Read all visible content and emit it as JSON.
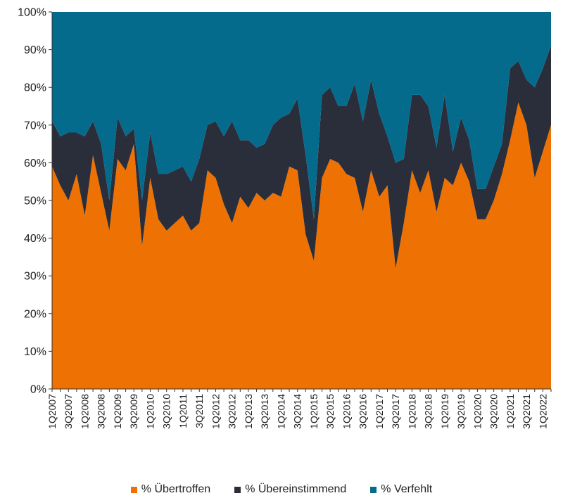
{
  "chart_data": {
    "type": "area",
    "stacked": true,
    "percent": true,
    "title": "",
    "xlabel": "",
    "ylabel": "",
    "ylim": [
      0,
      100
    ],
    "y_ticks": [
      "0%",
      "10%",
      "20%",
      "30%",
      "40%",
      "50%",
      "60%",
      "70%",
      "80%",
      "90%",
      "100%"
    ],
    "x_tick_labels": [
      "1Q2007",
      "3Q2007",
      "1Q2008",
      "3Q2008",
      "1Q2009",
      "3Q2009",
      "1Q2010",
      "3Q2010",
      "1Q2011",
      "3Q2011",
      "1Q2012",
      "3Q2012",
      "1Q2013",
      "3Q2013",
      "1Q2014",
      "3Q2014",
      "1Q2015",
      "3Q2015",
      "1Q2016",
      "3Q2016",
      "1Q2017",
      "3Q2017",
      "1Q2018",
      "3Q2018",
      "1Q2019",
      "3Q2019",
      "1Q2020",
      "3Q2020",
      "1Q2021",
      "3Q2021",
      "1Q2022"
    ],
    "x": [
      "1Q2007",
      "2Q2007",
      "3Q2007",
      "4Q2007",
      "1Q2008",
      "2Q2008",
      "3Q2008",
      "4Q2008",
      "1Q2009",
      "2Q2009",
      "3Q2009",
      "4Q2009",
      "1Q2010",
      "2Q2010",
      "3Q2010",
      "4Q2010",
      "1Q2011",
      "2Q2011",
      "3Q2011",
      "4Q2011",
      "1Q2012",
      "2Q2012",
      "3Q2012",
      "4Q2012",
      "1Q2013",
      "2Q2013",
      "3Q2013",
      "4Q2013",
      "1Q2014",
      "2Q2014",
      "3Q2014",
      "4Q2014",
      "1Q2015",
      "2Q2015",
      "3Q2015",
      "4Q2015",
      "1Q2016",
      "2Q2016",
      "3Q2016",
      "4Q2016",
      "1Q2017",
      "2Q2017",
      "3Q2017",
      "4Q2017",
      "1Q2018",
      "2Q2018",
      "3Q2018",
      "4Q2018",
      "1Q2019",
      "2Q2019",
      "3Q2019",
      "4Q2019",
      "1Q2020",
      "2Q2020",
      "3Q2020",
      "4Q2020",
      "1Q2021",
      "2Q2021",
      "3Q2021",
      "4Q2021",
      "1Q2022",
      "2Q2022"
    ],
    "series": [
      {
        "name": "% Übertroffen",
        "color": "#ee7203",
        "values": [
          59,
          54,
          50,
          57,
          46,
          62,
          52,
          42,
          61,
          58,
          65,
          38,
          56,
          45,
          42,
          44,
          46,
          42,
          44,
          58,
          56,
          49,
          44,
          51,
          48,
          52,
          50,
          52,
          51,
          59,
          58,
          41,
          34,
          56,
          61,
          60,
          57,
          56,
          47,
          58,
          51,
          54,
          32,
          44,
          58,
          52,
          58,
          47,
          56,
          54,
          60,
          55,
          45,
          45,
          50,
          57,
          66,
          76,
          70,
          56,
          63,
          70
        ]
      },
      {
        "name": "% Übereinstimmend",
        "color": "#2a2d3a",
        "values": [
          12,
          13,
          18,
          11,
          21,
          9,
          13,
          8,
          11,
          9,
          4,
          12,
          12,
          12,
          15,
          14,
          13,
          13,
          17,
          12,
          15,
          18,
          27,
          15,
          18,
          12,
          15,
          18,
          21,
          14,
          19,
          21,
          11,
          22,
          19,
          15,
          18,
          25,
          24,
          24,
          22,
          13,
          28,
          17,
          20,
          26,
          17,
          17,
          22,
          9,
          12,
          11,
          8,
          8,
          9,
          8,
          19,
          11,
          12,
          24,
          22,
          21
        ]
      },
      {
        "name": "% Verfehlt",
        "color": "#046b8d",
        "values": [
          29,
          33,
          32,
          32,
          33,
          29,
          35,
          50,
          28,
          33,
          31,
          50,
          32,
          43,
          43,
          42,
          41,
          45,
          39,
          30,
          29,
          33,
          29,
          34,
          34,
          36,
          35,
          30,
          28,
          27,
          23,
          38,
          55,
          22,
          20,
          25,
          25,
          19,
          29,
          18,
          27,
          33,
          40,
          39,
          22,
          22,
          25,
          36,
          22,
          37,
          28,
          34,
          47,
          47,
          41,
          35,
          15,
          13,
          18,
          20,
          15,
          9
        ]
      }
    ],
    "legend_position": "bottom"
  }
}
